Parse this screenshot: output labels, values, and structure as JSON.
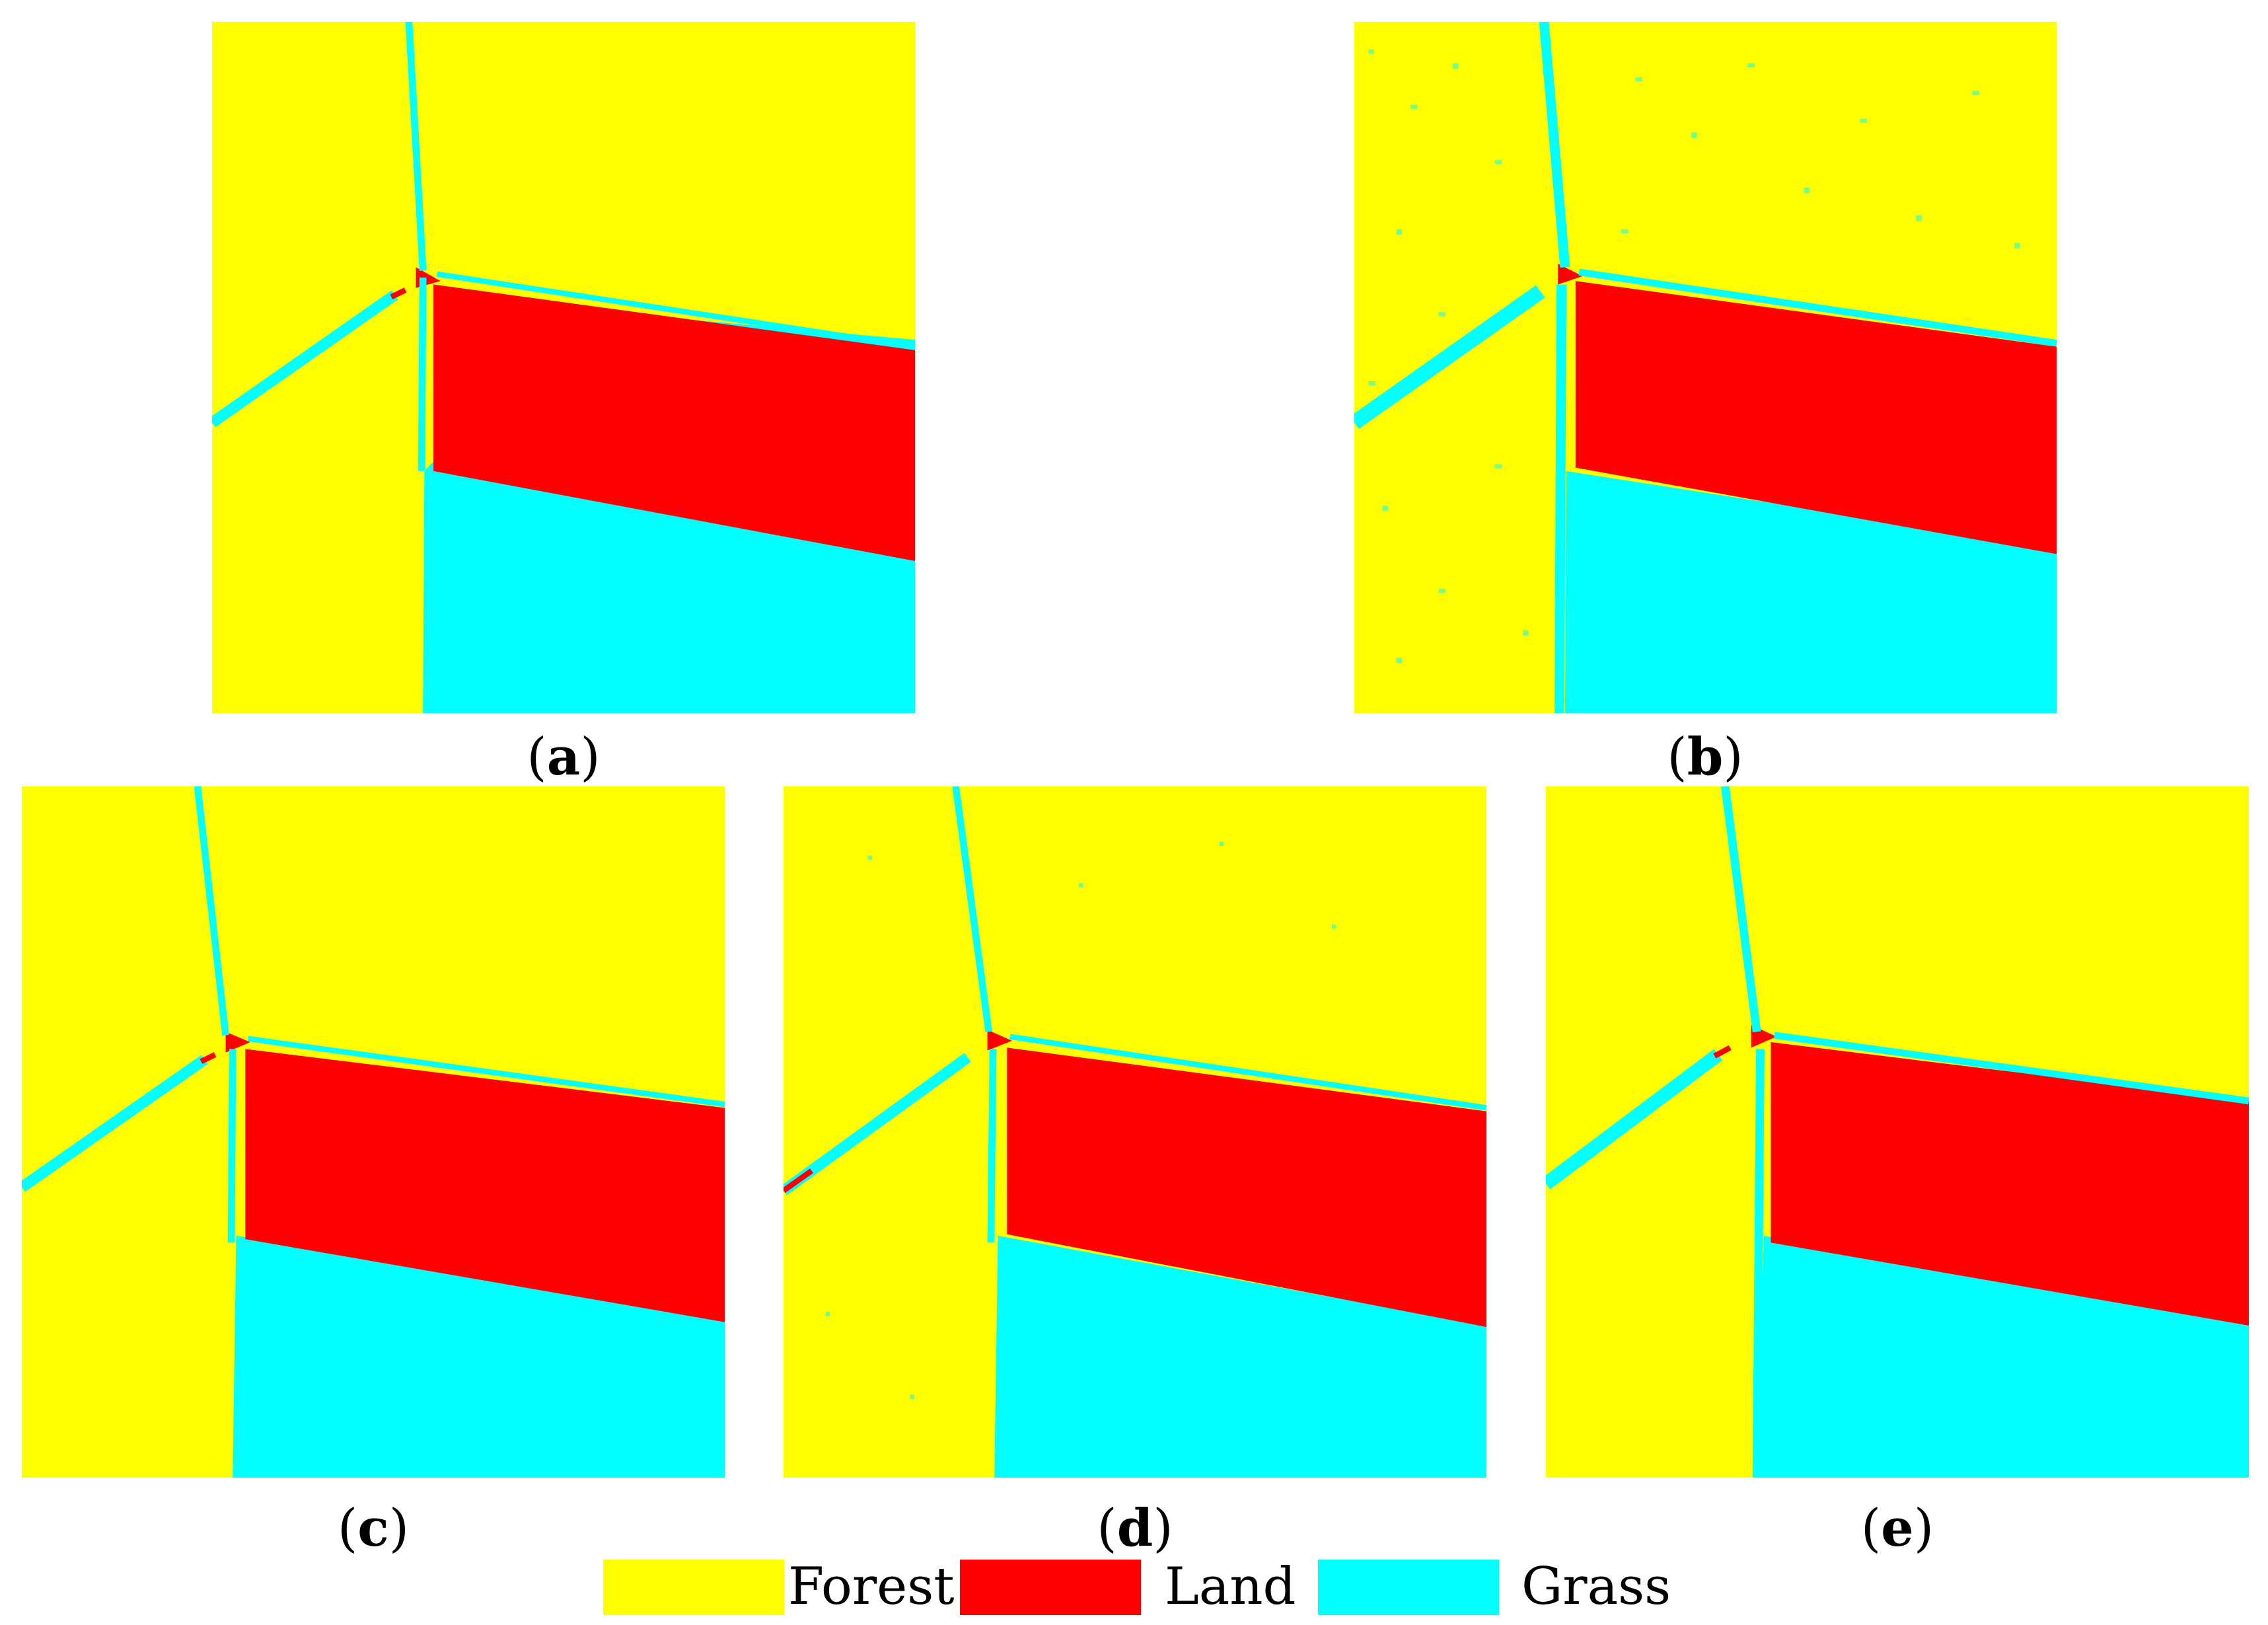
{
  "figure": {
    "panels": [
      {
        "id": "a",
        "label": "a"
      },
      {
        "id": "b",
        "label": "b"
      },
      {
        "id": "c",
        "label": "c"
      },
      {
        "id": "d",
        "label": "d"
      },
      {
        "id": "e",
        "label": "e"
      }
    ],
    "legend": [
      {
        "name": "Forest",
        "color": "#ffff00"
      },
      {
        "name": "Land",
        "color": "#ff0000"
      },
      {
        "name": "Grass",
        "color": "#00ffff"
      }
    ],
    "colors": {
      "forest": "#ffff00",
      "land": "#ff0000",
      "grass": "#00ffff"
    }
  }
}
